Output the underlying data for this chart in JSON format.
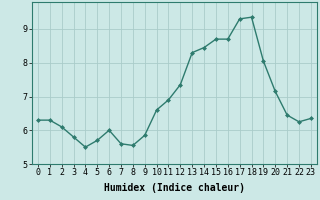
{
  "x": [
    0,
    1,
    2,
    3,
    4,
    5,
    6,
    7,
    8,
    9,
    10,
    11,
    12,
    13,
    14,
    15,
    16,
    17,
    18,
    19,
    20,
    21,
    22,
    23
  ],
  "y": [
    6.3,
    6.3,
    6.1,
    5.8,
    5.5,
    5.7,
    6.0,
    5.6,
    5.55,
    5.85,
    6.6,
    6.9,
    7.35,
    8.3,
    8.45,
    8.7,
    8.7,
    9.3,
    9.35,
    8.05,
    7.15,
    6.45,
    6.25,
    6.35
  ],
  "line_color": "#2e7b6e",
  "marker": "D",
  "marker_size": 2.0,
  "line_width": 1.0,
  "bg_color": "#cce8e6",
  "grid_color": "#aaccca",
  "axis_bg": "#cce8e6",
  "xlabel": "Humidex (Indice chaleur)",
  "xlabel_fontsize": 7,
  "tick_fontsize": 6,
  "ylim": [
    5.0,
    9.8
  ],
  "xlim": [
    -0.5,
    23.5
  ],
  "yticks": [
    5,
    6,
    7,
    8,
    9
  ],
  "xticks": [
    0,
    1,
    2,
    3,
    4,
    5,
    6,
    7,
    8,
    9,
    10,
    11,
    12,
    13,
    14,
    15,
    16,
    17,
    18,
    19,
    20,
    21,
    22,
    23
  ]
}
